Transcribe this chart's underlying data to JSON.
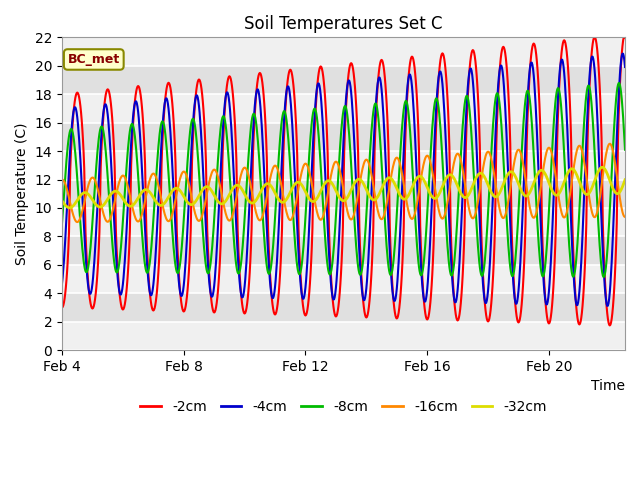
{
  "title": "Soil Temperatures Set C",
  "xlabel": "Time",
  "ylabel": "Soil Temperature (C)",
  "ylim": [
    0,
    22
  ],
  "annotation": "BC_met",
  "legend": [
    "-2cm",
    "-4cm",
    "-8cm",
    "-16cm",
    "-32cm"
  ],
  "line_colors": [
    "#ff0000",
    "#0000cc",
    "#00bb00",
    "#ff8800",
    "#dddd00"
  ],
  "line_widths": [
    1.5,
    1.5,
    1.5,
    1.5,
    2.0
  ],
  "xtick_labels": [
    "Feb 4",
    "Feb 8",
    "Feb 12",
    "Feb 16",
    "Feb 20"
  ],
  "xtick_positions": [
    0,
    4,
    8,
    12,
    16
  ],
  "total_days": 18.5
}
